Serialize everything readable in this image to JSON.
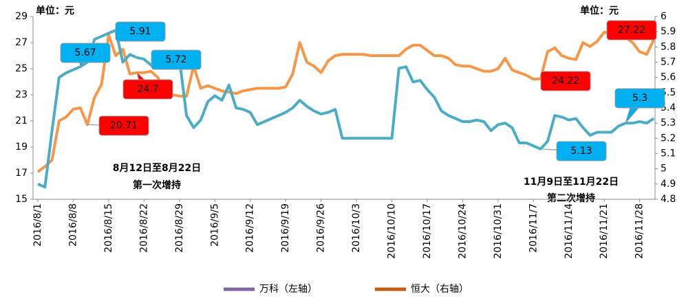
{
  "chart_data": {
    "type": "line",
    "y_unit": "单位：元",
    "y2_unit": "单位：元",
    "annotations": [
      [
        "8月12日至8月22日",
        "第一次增持"
      ],
      [
        "11月9日至11月22日",
        "第二次增持"
      ]
    ],
    "legend": [
      {
        "name": "万科（左轴）",
        "color": "#8064a2"
      },
      {
        "name": "恒大（右轴）",
        "color": "#c55a11"
      }
    ],
    "categories": [
      "2016/8/1",
      null,
      null,
      null,
      null,
      "2016/8/8",
      null,
      null,
      null,
      null,
      "2016/8/15",
      null,
      null,
      null,
      null,
      "2016/8/22",
      null,
      null,
      null,
      null,
      "2016/8/29",
      null,
      null,
      null,
      null,
      "2016/9/5",
      null,
      null,
      null,
      null,
      "2016/9/12",
      null,
      null,
      null,
      null,
      "2016/9/19",
      null,
      null,
      null,
      null,
      "2016/9/26",
      null,
      null,
      null,
      null,
      "2016/10/3",
      null,
      null,
      null,
      null,
      "2016/10/10",
      null,
      null,
      null,
      null,
      "2016/10/17",
      null,
      null,
      null,
      null,
      "2016/10/24",
      null,
      null,
      null,
      null,
      "2016/10/31",
      null,
      null,
      null,
      null,
      "2016/11/7",
      null,
      null,
      null,
      null,
      "2016/11/14",
      null,
      null,
      null,
      null,
      "2016/11/21",
      null,
      null,
      null,
      null,
      "2016/11/28",
      null,
      null
    ],
    "series": [
      {
        "color": "#f79646",
        "label_color": "#ff0000",
        "axis": "y",
        "values": [
          17.1,
          17.5,
          18.0,
          21.0,
          21.3,
          21.9,
          22.0,
          20.71,
          22.8,
          23.8,
          27.6,
          26.0,
          26.5,
          24.6,
          24.7,
          24.7,
          24.8,
          24.3,
          23.0,
          23.0,
          22.9,
          22.9,
          25.2,
          23.5,
          23.7,
          23.5,
          23.3,
          23.2,
          23.1,
          23.3,
          23.4,
          23.5,
          23.5,
          23.5,
          23.5,
          23.6,
          24.6,
          27.0,
          25.5,
          25.2,
          24.7,
          25.6,
          26.0,
          26.1,
          26.1,
          26.1,
          26.1,
          26.0,
          26.0,
          26.0,
          26.0,
          26.0,
          26.5,
          26.8,
          26.8,
          26.4,
          26.0,
          26.0,
          25.8,
          25.3,
          25.2,
          25.2,
          25.0,
          24.8,
          24.8,
          25.0,
          25.8,
          24.9,
          24.7,
          24.5,
          24.2,
          24.22,
          26.3,
          26.6,
          26.0,
          25.8,
          25.7,
          27.0,
          26.7,
          27.1,
          27.8,
          27.7,
          27.5,
          27.4,
          27.0,
          26.3,
          26.1,
          27.22
        ],
        "value_labels": [
          null,
          null,
          null,
          null,
          null,
          null,
          null,
          "20.71",
          null,
          null,
          null,
          null,
          null,
          null,
          "24.7",
          null,
          null,
          null,
          null,
          null,
          null,
          null,
          null,
          null,
          null,
          null,
          null,
          null,
          null,
          null,
          null,
          null,
          null,
          null,
          null,
          null,
          null,
          null,
          null,
          null,
          null,
          null,
          null,
          null,
          null,
          null,
          null,
          null,
          null,
          null,
          null,
          null,
          null,
          null,
          null,
          null,
          null,
          null,
          null,
          null,
          null,
          null,
          null,
          null,
          null,
          null,
          null,
          null,
          null,
          null,
          null,
          "24.22",
          null,
          null,
          null,
          null,
          null,
          null,
          null,
          null,
          null,
          null,
          null,
          null,
          null,
          null,
          null,
          "27.22"
        ]
      },
      {
        "color": "#4bacc6",
        "label_color": "#00b0f0",
        "axis": "y2",
        "values": [
          4.9,
          4.88,
          5.25,
          5.6,
          5.63,
          5.65,
          5.67,
          5.7,
          5.85,
          5.87,
          5.89,
          5.91,
          5.7,
          5.75,
          5.73,
          5.72,
          5.68,
          5.66,
          5.7,
          5.72,
          5.72,
          5.35,
          5.27,
          5.32,
          5.44,
          5.48,
          5.45,
          5.55,
          5.4,
          5.39,
          5.37,
          5.29,
          5.31,
          5.33,
          5.35,
          5.37,
          5.4,
          5.45,
          5.41,
          5.38,
          5.36,
          5.37,
          5.39,
          5.2,
          5.2,
          5.2,
          5.2,
          5.2,
          5.2,
          5.2,
          5.2,
          5.66,
          5.67,
          5.57,
          5.58,
          5.52,
          5.47,
          5.38,
          5.35,
          5.33,
          5.31,
          5.31,
          5.32,
          5.31,
          5.25,
          5.29,
          5.3,
          5.27,
          5.17,
          5.17,
          5.15,
          5.13,
          5.18,
          5.35,
          5.34,
          5.32,
          5.33,
          5.27,
          5.22,
          5.24,
          5.24,
          5.24,
          5.28,
          5.3,
          5.3,
          5.31,
          5.3,
          5.33
        ],
        "value_labels": [
          null,
          null,
          null,
          null,
          null,
          null,
          "5.67",
          null,
          null,
          null,
          null,
          "5.91",
          null,
          null,
          null,
          null,
          null,
          null,
          null,
          "5.72",
          null,
          null,
          null,
          null,
          null,
          null,
          null,
          null,
          null,
          null,
          null,
          null,
          null,
          null,
          null,
          null,
          null,
          null,
          null,
          null,
          null,
          null,
          null,
          null,
          null,
          null,
          null,
          null,
          null,
          null,
          null,
          null,
          null,
          null,
          null,
          null,
          null,
          null,
          null,
          null,
          null,
          null,
          null,
          null,
          null,
          null,
          null,
          null,
          null,
          null,
          null,
          "5.13",
          null,
          null,
          null,
          null,
          null,
          null,
          null,
          null,
          null,
          null,
          null,
          "5.3",
          null,
          null,
          null,
          null
        ]
      }
    ],
    "ylim": [
      15,
      29
    ],
    "yticks": [
      15,
      17,
      19,
      21,
      23,
      25,
      27,
      29
    ],
    "y2lim": [
      4.8,
      6
    ],
    "y2ticks": [
      4.8,
      4.9,
      5,
      5.1,
      5.2,
      5.3,
      5.4,
      5.5,
      5.6,
      5.7,
      5.8,
      5.9,
      6
    ]
  }
}
